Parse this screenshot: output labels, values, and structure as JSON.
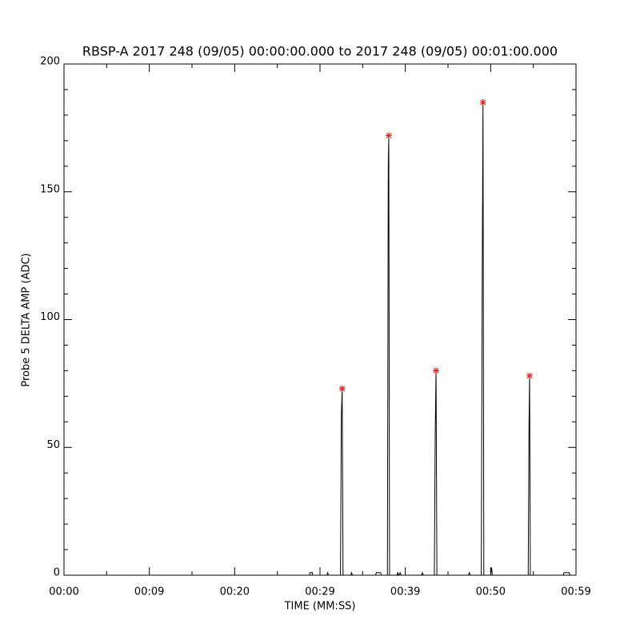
{
  "chart_data": {
    "type": "line",
    "title": "RBSP-A 2017 248 (09/05) 00:00:00.000 to 2017 248 (09/05) 00:01:00.000",
    "x_label": "TIME (MM:SS)",
    "y_label": "Probe 5 DELTA AMP (ADC)",
    "xlim": [
      0,
      60
    ],
    "ylim": [
      0,
      200
    ],
    "xticks": [
      {
        "value": 0,
        "label": "00:00"
      },
      {
        "value": 10,
        "label": "00:09"
      },
      {
        "value": 20,
        "label": "00:20"
      },
      {
        "value": 30,
        "label": "00:29"
      },
      {
        "value": 40,
        "label": "00:39"
      },
      {
        "value": 50,
        "label": "00:50"
      },
      {
        "value": 60,
        "label": "00:59"
      }
    ],
    "xminorticks": [
      5,
      15,
      25,
      35,
      45,
      55
    ],
    "yticks": [
      0,
      50,
      100,
      150,
      200
    ],
    "yminorticks": [
      10,
      20,
      30,
      40,
      60,
      70,
      80,
      90,
      110,
      120,
      130,
      140,
      160,
      170,
      180,
      190
    ],
    "series": [
      {
        "color": "#000000",
        "x": [
          0,
          28.8,
          28.8,
          29.1,
          29.1,
          30.8,
          30.9,
          31.0,
          32.4,
          32.5,
          32.6,
          32.7,
          33.6,
          33.7,
          33.8,
          36.5,
          36.6,
          37.1,
          37.2,
          37.9,
          38.0,
          38.06,
          38.15,
          39.0,
          39.1,
          39.2,
          39.4,
          39.5,
          41.9,
          42.0,
          42.1,
          43.4,
          43.5,
          43.6,
          43.7,
          47.4,
          47.5,
          47.6,
          48.9,
          49.0,
          49.1,
          49.2,
          50.0,
          50.1,
          50.2,
          54.4,
          54.5,
          54.56,
          54.65,
          58.5,
          58.6,
          59.2,
          59.3,
          60
        ],
        "values": [
          0,
          0,
          1,
          1,
          0,
          0,
          1,
          0,
          0,
          62,
          73,
          0,
          0,
          1,
          0,
          0,
          1,
          1,
          0,
          0,
          159,
          172,
          0,
          0,
          1,
          0,
          1,
          0,
          0,
          1,
          0,
          0,
          55,
          80,
          0,
          0,
          1,
          0,
          0,
          105,
          185,
          0,
          0,
          3,
          0,
          0,
          60,
          78,
          0,
          0,
          1,
          1,
          0,
          0
        ]
      },
      {
        "color": "#e8281e",
        "marker": "asterisk",
        "x": [
          32.6,
          38.06,
          43.6,
          49.1,
          54.56
        ],
        "values": [
          73,
          172,
          80,
          185,
          78
        ]
      }
    ]
  }
}
